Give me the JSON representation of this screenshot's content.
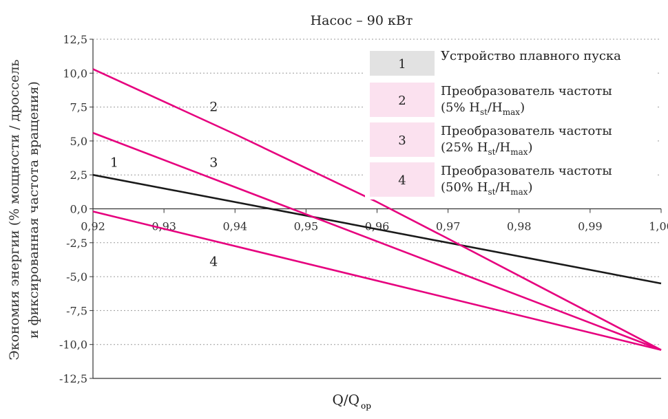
{
  "chart_data": {
    "type": "line",
    "title": "Насос – 90 кВт",
    "xlabel": "Q/Q",
    "xlabel_sub": "op",
    "ylabel_line1": "Экономия энергии (% мощности / дроссель",
    "ylabel_line2": "и фиксированная частота вращения)",
    "xlim": [
      0.92,
      1.0
    ],
    "ylim": [
      -12.5,
      12.5
    ],
    "x_ticks": [
      "0,92",
      "0,93",
      "0,94",
      "0,95",
      "0,96",
      "0,97",
      "0,98",
      "0,99",
      "1,00"
    ],
    "y_ticks": [
      "12,5",
      "10,0",
      "7,5",
      "5,0",
      "2,5",
      "0,0",
      "-2,5",
      "-5,0",
      "-7,5",
      "-10,0",
      "-12,5"
    ],
    "grid": "horizontal dotted",
    "legend_position": "top-right",
    "series": [
      {
        "id": "1",
        "name": "Устройство плавного пуска",
        "name_sub": "",
        "color": "#1a1a1a",
        "x": [
          0.92,
          1.0
        ],
        "y": [
          2.5,
          -5.5
        ],
        "label": "1",
        "label_at": [
          0.923,
          3.1
        ]
      },
      {
        "id": "2",
        "name": "Преобразователь частоты",
        "name_sub": "(5% H_st/H_max)",
        "color": "#e6007e",
        "x": [
          0.92,
          0.94,
          0.95,
          0.96,
          0.97,
          1.0
        ],
        "y": [
          10.3,
          5.5,
          3.0,
          0.5,
          -2.2,
          -10.4
        ],
        "label": "2",
        "label_at": [
          0.937,
          7.2
        ]
      },
      {
        "id": "3",
        "name": "Преобразователь частоты",
        "name_sub": "(25% H_st/H_max)",
        "color": "#e6007e",
        "x": [
          0.92,
          1.0
        ],
        "y": [
          5.6,
          -10.4
        ],
        "label": "3",
        "label_at": [
          0.937,
          3.1
        ]
      },
      {
        "id": "4",
        "name": "Преобразователь частоты",
        "name_sub": "(50% H_st/H_max)",
        "color": "#e6007e",
        "x": [
          0.92,
          1.0
        ],
        "y": [
          -0.2,
          -10.4
        ],
        "label": "4",
        "label_at": [
          0.937,
          -4.2
        ]
      }
    ]
  }
}
